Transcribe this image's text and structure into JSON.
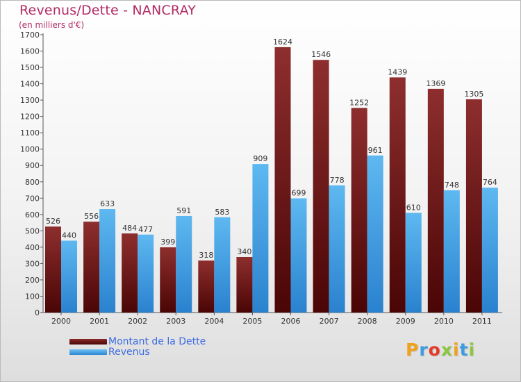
{
  "header": {
    "title": "Revenus/Dette - NANCRAY",
    "subtitle": "(en milliers d'€)"
  },
  "chart_data": {
    "type": "bar",
    "title": "Revenus/Dette - NANCRAY",
    "subtitle": "(en milliers d'€)",
    "xlabel": "",
    "ylabel": "",
    "ylim": [
      0,
      1700
    ],
    "ytick_step": 100,
    "grid": false,
    "legend_position": "bottom-left",
    "categories": [
      "2000",
      "2001",
      "2002",
      "2003",
      "2004",
      "2005",
      "2006",
      "2007",
      "2008",
      "2009",
      "2010",
      "2011"
    ],
    "series": [
      {
        "name": "Montant de la Dette",
        "color": "#7a1a1a",
        "values": [
          526,
          556,
          484,
          399,
          318,
          340,
          1624,
          1546,
          1252,
          1439,
          1369,
          1305
        ]
      },
      {
        "name": "Revenus",
        "color": "#4aa2e6",
        "values": [
          440,
          633,
          477,
          591,
          583,
          909,
          699,
          778,
          961,
          610,
          748,
          764
        ]
      }
    ]
  },
  "logo": {
    "text": "Proxiti",
    "colors": [
      "#f0a11a",
      "#3f9be0",
      "#e23b2a",
      "#8cc63f",
      "#f0a11a",
      "#3f9be0",
      "#8cc63f"
    ]
  }
}
